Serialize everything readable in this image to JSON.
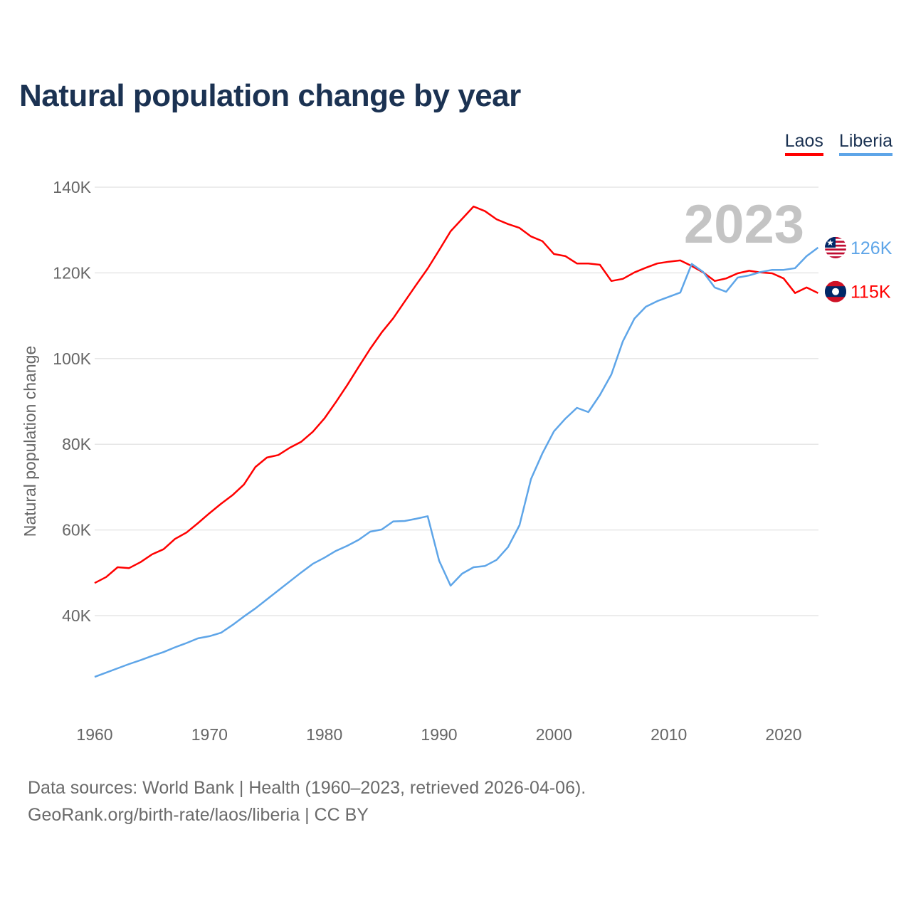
{
  "title": "Natural population change by year",
  "source_line1": "Data sources: World Bank | Health (1960–2023, retrieved 2026-04-06).",
  "source_line2": "GeoRank.org/birth-rate/laos/liberia | CC BY",
  "chart_data": {
    "type": "line",
    "title": "Natural population change by year",
    "xlabel": "",
    "ylabel": "Natural population change",
    "xlim": [
      1960,
      2023
    ],
    "ylim": [
      18000,
      140000
    ],
    "x_ticks": [
      "1960",
      "1970",
      "1980",
      "1990",
      "2000",
      "2010",
      "2020"
    ],
    "y_ticks": [
      {
        "value": 40000,
        "label": "40K"
      },
      {
        "value": 60000,
        "label": "60K"
      },
      {
        "value": 80000,
        "label": "80K"
      },
      {
        "value": 100000,
        "label": "100K"
      },
      {
        "value": 120000,
        "label": "120K"
      },
      {
        "value": 140000,
        "label": "140K"
      }
    ],
    "grid": true,
    "legend_position": "top-right",
    "year_annotation": "2023",
    "x_start": 1960,
    "series": [
      {
        "name": "Laos",
        "color": "#ff0000",
        "end_label": "115K",
        "flag": "laos-flag",
        "values": [
          47.6,
          49.0,
          51.3,
          51.1,
          52.5,
          54.3,
          55.5,
          57.9,
          59.4,
          61.6,
          63.9,
          66.1,
          68.1,
          70.6,
          74.7,
          76.9,
          77.5,
          79.2,
          80.6,
          82.9,
          86.0,
          89.8,
          93.8,
          98.1,
          102.3,
          106.1,
          109.4,
          113.3,
          117.2,
          121.0,
          125.3,
          129.7,
          132.6,
          135.5,
          134.4,
          132.5,
          131.4,
          130.5,
          128.5,
          127.4,
          124.4,
          123.9,
          122.2,
          122.2,
          121.9,
          118.1,
          118.6,
          120.1,
          121.2,
          122.2,
          122.6,
          122.9,
          121.6,
          120.1,
          118.1,
          118.7,
          119.9,
          120.5,
          120.1,
          119.9,
          118.7,
          115.3,
          116.6,
          115.3
        ]
      },
      {
        "name": "Liberia",
        "color": "#5ea5e8",
        "end_label": "126K",
        "flag": "liberia-flag",
        "values": [
          25.7,
          26.7,
          27.7,
          28.7,
          29.6,
          30.6,
          31.5,
          32.6,
          33.6,
          34.7,
          35.2,
          36.0,
          37.8,
          39.8,
          41.7,
          43.8,
          45.9,
          48.0,
          50.1,
          52.1,
          53.5,
          55.1,
          56.3,
          57.7,
          59.6,
          60.1,
          62.0,
          62.1,
          62.6,
          63.2,
          52.8,
          47.0,
          49.8,
          51.3,
          51.6,
          53.0,
          56.0,
          61.1,
          71.9,
          77.9,
          83.0,
          86.0,
          88.5,
          87.5,
          91.5,
          96.3,
          104.0,
          109.3,
          112.1,
          113.4,
          114.4,
          115.4,
          122.1,
          120.2,
          116.6,
          115.6,
          118.9,
          119.4,
          120.2,
          120.7,
          120.7,
          121.1,
          123.9,
          125.9
        ]
      }
    ],
    "value_unit": "thousands"
  }
}
